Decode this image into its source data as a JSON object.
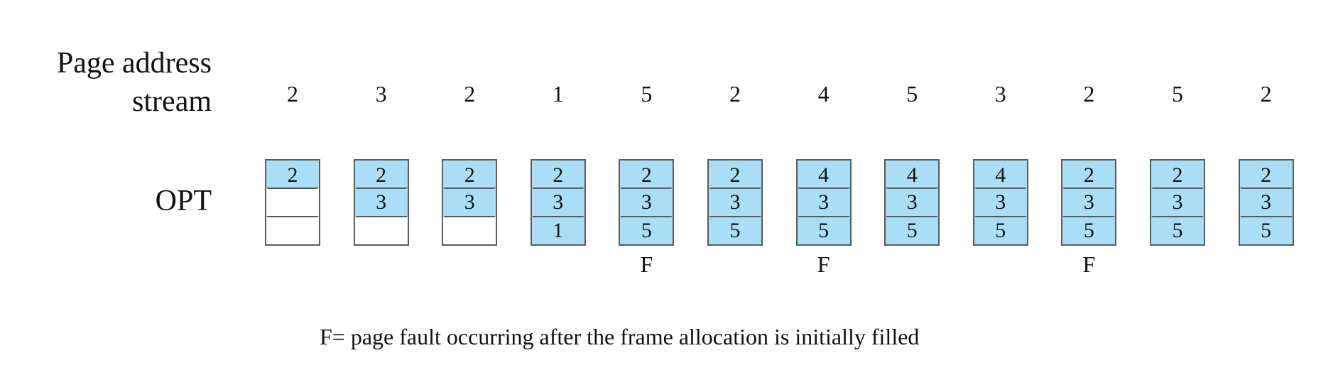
{
  "labels": {
    "stream_line1": "Page address",
    "stream_line2": "stream",
    "algorithm": "OPT"
  },
  "stream": [
    "2",
    "3",
    "2",
    "1",
    "5",
    "2",
    "4",
    "5",
    "3",
    "2",
    "5",
    "2"
  ],
  "frames": [
    [
      "2",
      "",
      ""
    ],
    [
      "2",
      "3",
      ""
    ],
    [
      "2",
      "3",
      ""
    ],
    [
      "2",
      "3",
      "1"
    ],
    [
      "2",
      "3",
      "5"
    ],
    [
      "2",
      "3",
      "5"
    ],
    [
      "4",
      "3",
      "5"
    ],
    [
      "4",
      "3",
      "5"
    ],
    [
      "4",
      "3",
      "5"
    ],
    [
      "2",
      "3",
      "5"
    ],
    [
      "2",
      "3",
      "5"
    ],
    [
      "2",
      "3",
      "5"
    ]
  ],
  "faults": [
    "",
    "",
    "",
    "",
    "F",
    "",
    "F",
    "",
    "",
    "F",
    "",
    ""
  ],
  "legend": "F= page fault occurring after the frame allocation is initially filled",
  "colors": {
    "filled_frame": "#a9def6",
    "frame_border": "#5a5a5a"
  }
}
